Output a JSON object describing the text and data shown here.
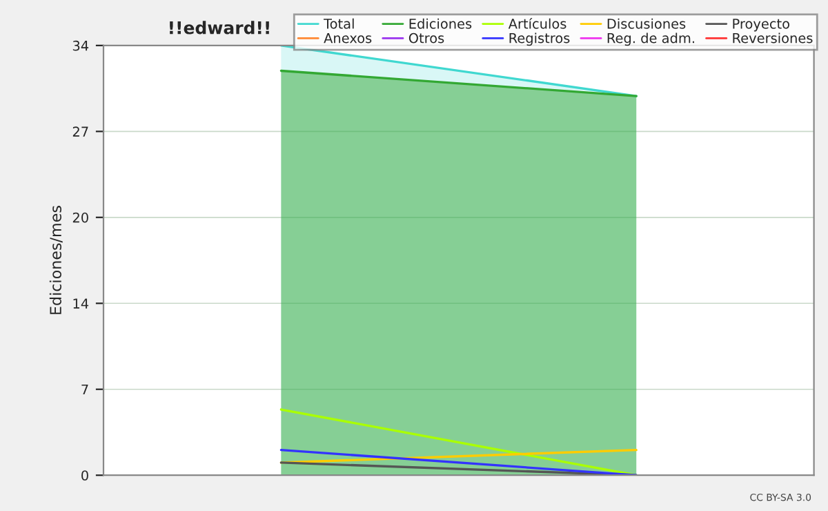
{
  "chart_data": {
    "type": "line",
    "title": "!!edward!!",
    "ylabel": "Ediciones/mes",
    "annotations": [
      "CC BY-SA 3.0"
    ],
    "categories": [
      null,
      null
    ],
    "ylim": [
      0,
      34
    ],
    "yticks": [
      0,
      {
        "value": 6.8,
        "label": "7"
      },
      {
        "value": 13.6,
        "label": "14"
      },
      {
        "value": 20.4,
        "label": "20"
      },
      {
        "value": 27.2,
        "label": "27"
      },
      34
    ],
    "grid": "y",
    "legend": "top right",
    "series": [
      {
        "name": "Total",
        "type": "area",
        "color": "#40d8d0",
        "values": [
          34,
          30
        ]
      },
      {
        "name": "Ediciones",
        "type": "area",
        "color": "#33a833",
        "values": [
          32,
          30
        ]
      },
      {
        "name": "Artículos",
        "color": "#aaff00",
        "values": [
          5.2,
          0
        ]
      },
      {
        "name": "Discusiones",
        "color": "#ffcc00",
        "values": [
          1,
          2
        ]
      },
      {
        "name": "Proyecto",
        "color": "#555555",
        "values": [
          1,
          0
        ]
      },
      {
        "name": "Anexos",
        "color": "#ff8833",
        "values": [
          null,
          null
        ]
      },
      {
        "name": "Otros",
        "color": "#9933ee",
        "values": [
          null,
          null
        ]
      },
      {
        "name": "Registros",
        "color": "#3333ff",
        "values": [
          2,
          0
        ]
      },
      {
        "name": "Reg. de adm.",
        "color": "#ee33ee",
        "values": [
          null,
          null
        ]
      },
      {
        "name": "Reversiones",
        "color": "#ff3333",
        "values": [
          null,
          null
        ]
      }
    ]
  }
}
